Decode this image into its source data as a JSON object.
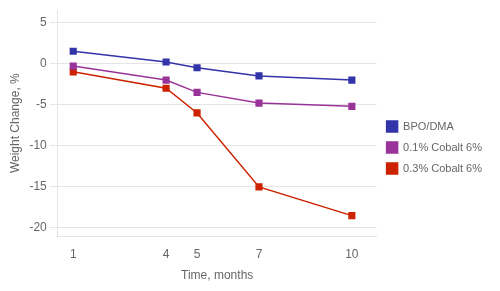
{
  "chart_data": {
    "type": "line",
    "x": [
      1,
      4,
      5,
      7,
      10
    ],
    "series": [
      {
        "name": "BPO/DMA",
        "color": "#3333AA",
        "marker": "square",
        "values": [
          1.5,
          0.2,
          -0.5,
          -1.5,
          -2.0
        ]
      },
      {
        "name": "0.1% Cobalt 6%",
        "color": "#993399",
        "marker": "square",
        "values": [
          -0.3,
          -2.0,
          -3.5,
          -4.8,
          -5.2
        ]
      },
      {
        "name": "0.3% Cobalt 6%",
        "color": "#CC2200",
        "marker": "square",
        "values": [
          -1.0,
          -3.0,
          -6.0,
          -15.0,
          -18.5
        ]
      }
    ],
    "x_label": "Time, months",
    "y_label": "Weight Change, %",
    "xlim": [
      0.5,
      10.8
    ],
    "ylim": [
      -21,
      6.5
    ],
    "xticks": [
      1,
      4,
      5,
      7,
      10
    ],
    "yticks": [
      5,
      0,
      -5,
      -10,
      -15,
      -20
    ],
    "grid": "y",
    "legend": "right"
  }
}
